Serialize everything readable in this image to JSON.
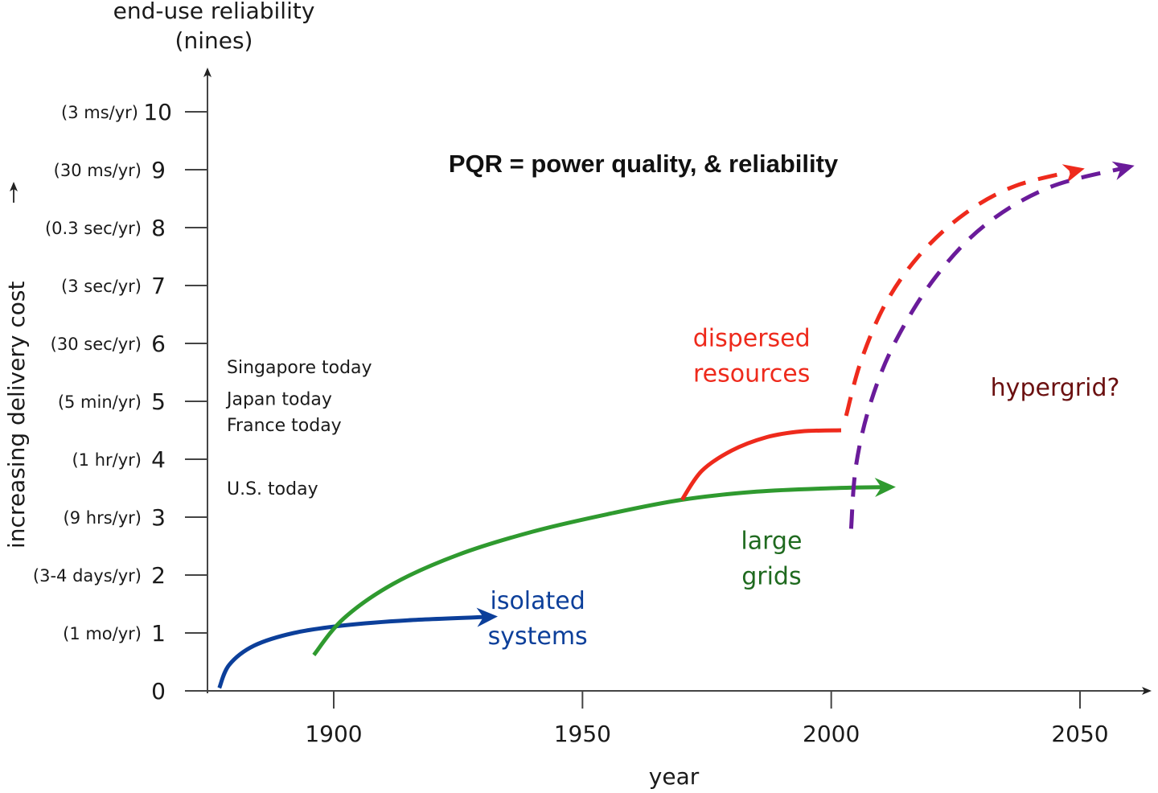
{
  "chart_data": {
    "type": "line",
    "title": "PQR = power quality, & reliability",
    "xlabel": "year",
    "ylabel_top": [
      "end-use reliability",
      "(nines)"
    ],
    "ylabel_side": "increasing delivery cost",
    "xlim": [
      1871,
      2064
    ],
    "ylim": [
      0,
      10.5
    ],
    "grid": false,
    "x_ticks": [
      {
        "value": 1900,
        "label": "1900"
      },
      {
        "value": 1950,
        "label": "1950"
      },
      {
        "value": 2000,
        "label": "2000"
      },
      {
        "value": 2050,
        "label": "2050"
      }
    ],
    "y_ticks": [
      {
        "value": 0,
        "label": "0",
        "desc": ""
      },
      {
        "value": 1,
        "label": "1",
        "desc": "(1 mo/yr)"
      },
      {
        "value": 2,
        "label": "2",
        "desc": "(3-4 days/yr)"
      },
      {
        "value": 3,
        "label": "3",
        "desc": "(9 hrs/yr)"
      },
      {
        "value": 4,
        "label": "4",
        "desc": "(1 hr/yr)"
      },
      {
        "value": 5,
        "label": "5",
        "desc": "(5 min/yr)"
      },
      {
        "value": 6,
        "label": "6",
        "desc": "(30 sec/yr)"
      },
      {
        "value": 7,
        "label": "7",
        "desc": "(3 sec/yr)"
      },
      {
        "value": 8,
        "label": "8",
        "desc": "(0.3 sec/yr)"
      },
      {
        "value": 9,
        "label": "9",
        "desc": "(30 ms/yr)"
      },
      {
        "value": 10,
        "label": "10",
        "desc": "(3 ms/yr)"
      }
    ],
    "country_markers": [
      {
        "label": "Singapore today",
        "value": 5.6
      },
      {
        "label": "Japan today",
        "value": 5.05
      },
      {
        "label": "France today",
        "value": 4.6
      },
      {
        "label": "U.S. today",
        "value": 3.5
      }
    ],
    "series": [
      {
        "name": "isolated systems",
        "color": "#0c3f9a",
        "style": "solid",
        "arrow": true,
        "points": [
          [
            1877,
            0.05
          ],
          [
            1879,
            0.45
          ],
          [
            1884,
            0.78
          ],
          [
            1892,
            1.0
          ],
          [
            1902,
            1.13
          ],
          [
            1915,
            1.22
          ],
          [
            1932,
            1.28
          ]
        ]
      },
      {
        "name": "large grids",
        "color": "#2f9a2f",
        "style": "solid",
        "arrow": true,
        "points": [
          [
            1896,
            0.62
          ],
          [
            1902,
            1.25
          ],
          [
            1912,
            1.85
          ],
          [
            1925,
            2.35
          ],
          [
            1940,
            2.75
          ],
          [
            1955,
            3.05
          ],
          [
            1970,
            3.3
          ],
          [
            1985,
            3.44
          ],
          [
            2000,
            3.5
          ],
          [
            2012,
            3.52
          ]
        ]
      },
      {
        "name": "dispersed resources",
        "color": "#ee2a1c",
        "style": "solid",
        "arrow": false,
        "points": [
          [
            1970,
            3.3
          ],
          [
            1974,
            3.8
          ],
          [
            1980,
            4.15
          ],
          [
            1987,
            4.38
          ],
          [
            1994,
            4.48
          ],
          [
            2002,
            4.5
          ]
        ]
      },
      {
        "name": "dispersed resources (projected)",
        "color": "#ee2a1c",
        "style": "dashed",
        "arrow": true,
        "points": [
          [
            2003,
            4.75
          ],
          [
            2006,
            5.7
          ],
          [
            2011,
            6.7
          ],
          [
            2018,
            7.55
          ],
          [
            2027,
            8.25
          ],
          [
            2037,
            8.72
          ],
          [
            2050,
            9.0
          ]
        ]
      },
      {
        "name": "hypergrid (projected)",
        "color": "#6a1b9a",
        "style": "dashed",
        "arrow": true,
        "points": [
          [
            2004,
            2.8
          ],
          [
            2005,
            3.9
          ],
          [
            2008,
            5.0
          ],
          [
            2013,
            6.05
          ],
          [
            2021,
            7.15
          ],
          [
            2031,
            8.05
          ],
          [
            2044,
            8.7
          ],
          [
            2060,
            9.05
          ]
        ]
      }
    ],
    "annotations": [
      {
        "lines": [
          "isolated",
          "systems"
        ],
        "color": "#0c3f9a",
        "x": 1941,
        "y": 1.42
      },
      {
        "lines": [
          "large",
          "grids"
        ],
        "color": "#1f6a1f",
        "x": 1988,
        "y": 2.45
      },
      {
        "lines": [
          "dispersed",
          "resources"
        ],
        "color": "#ee2a1c",
        "x": 1984,
        "y": 5.95
      },
      {
        "lines": [
          "hypergrid?"
        ],
        "color": "#6b1010",
        "x": 2045,
        "y": 5.1
      }
    ]
  }
}
